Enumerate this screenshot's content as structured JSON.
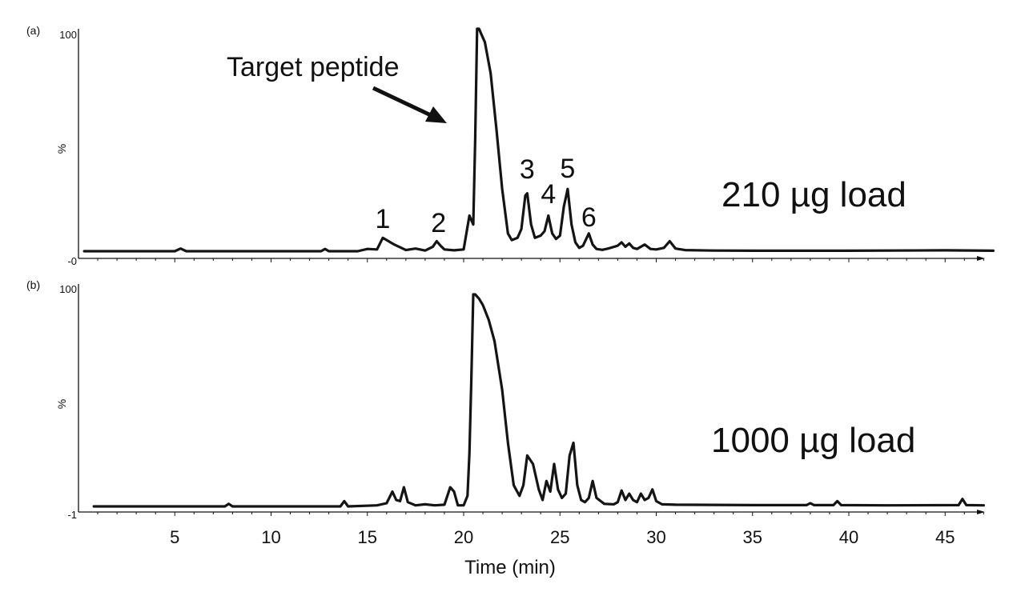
{
  "chart_data": {
    "type": "line",
    "x_axis": {
      "label": "Time (min)",
      "ticks": [
        5,
        10,
        15,
        20,
        25,
        30,
        35,
        40,
        45
      ],
      "range": [
        0,
        47.5
      ]
    },
    "panels": [
      {
        "panel_label": "(a)",
        "y_top_label": "100",
        "y_mid_label": "%",
        "y_bottom_label": "-0",
        "load_label": "210 µg load",
        "annotation": "Target peptide",
        "peak_labels": [
          {
            "text": "1",
            "x": 15.8
          },
          {
            "text": "2",
            "x": 18.7
          },
          {
            "text": "3",
            "x": 23.3
          },
          {
            "text": "4",
            "x": 24.4
          },
          {
            "text": "5",
            "x": 25.4
          },
          {
            "text": "6",
            "x": 26.5
          }
        ],
        "series": [
          {
            "x": [
              0.3,
              5.0,
              5.3,
              5.6,
              10.0,
              12.6,
              12.8,
              13.0,
              14.5,
              15.0,
              15.5,
              15.8,
              16.1,
              16.4,
              17.0,
              17.5,
              18.0,
              18.4,
              18.6,
              18.8,
              19.0,
              19.5,
              20.0,
              20.3,
              20.5,
              20.6,
              20.7,
              20.8,
              20.9,
              21.1,
              21.4,
              21.7,
              22.0,
              22.3,
              22.5,
              22.8,
              23.0,
              23.2,
              23.3,
              23.5,
              23.7,
              24.0,
              24.2,
              24.4,
              24.6,
              24.8,
              25.0,
              25.2,
              25.4,
              25.6,
              25.8,
              26.0,
              26.2,
              26.5,
              26.7,
              26.9,
              27.2,
              27.5,
              28.0,
              28.2,
              28.4,
              28.6,
              28.8,
              29.0,
              29.4,
              29.7,
              30.0,
              30.4,
              30.7,
              31.0,
              31.5,
              33.0,
              35.0,
              40.0,
              45.0,
              47.5
            ],
            "y": [
              0,
              0,
              1.2,
              0,
              0,
              0,
              1.0,
              0,
              0,
              1.0,
              0.8,
              6.0,
              4.5,
              3.0,
              0.5,
              1.2,
              0.3,
              2.0,
              4.5,
              2.5,
              0.8,
              0.4,
              0.8,
              16.0,
              12.0,
              50.0,
              100.0,
              100.0,
              98.0,
              94.0,
              80.0,
              55.0,
              28.0,
              8.0,
              5.0,
              6.0,
              10.0,
              25.0,
              26.0,
              12.0,
              6.0,
              7.0,
              9.0,
              16.0,
              8.0,
              5.5,
              7.0,
              20.0,
              28.0,
              12.0,
              4.0,
              1.5,
              2.5,
              8.0,
              3.0,
              1.0,
              0.6,
              1.2,
              2.5,
              4.0,
              2.0,
              3.5,
              1.5,
              1.0,
              3.0,
              1.0,
              0.8,
              1.5,
              4.5,
              1.2,
              0.5,
              0.3,
              0.2,
              0.2,
              0.4,
              0.2
            ]
          }
        ]
      },
      {
        "panel_label": "(b)",
        "y_top_label": "100",
        "y_mid_label": "%",
        "y_bottom_label": "-1",
        "load_label": "1000 µg load",
        "series": [
          {
            "x": [
              0.8,
              5.0,
              7.6,
              7.8,
              8.0,
              10.0,
              13.6,
              13.8,
              14.0,
              15.5,
              16.0,
              16.3,
              16.5,
              16.7,
              16.9,
              17.1,
              17.5,
              18.0,
              18.5,
              19.0,
              19.3,
              19.5,
              19.7,
              20.0,
              20.2,
              20.3,
              20.4,
              20.5,
              20.6,
              20.8,
              21.0,
              21.3,
              21.6,
              22.0,
              22.3,
              22.6,
              22.9,
              23.1,
              23.3,
              23.6,
              23.9,
              24.1,
              24.3,
              24.5,
              24.7,
              24.9,
              25.1,
              25.3,
              25.5,
              25.7,
              25.9,
              26.1,
              26.3,
              26.5,
              26.7,
              26.9,
              27.3,
              27.8,
              28.0,
              28.2,
              28.4,
              28.6,
              28.8,
              29.0,
              29.2,
              29.4,
              29.6,
              29.8,
              30.0,
              30.3,
              31.0,
              35.0,
              37.8,
              38.0,
              38.2,
              39.2,
              39.4,
              39.6,
              42.0,
              45.7,
              45.9,
              46.1,
              47.0
            ],
            "y": [
              0,
              0,
              0,
              1.2,
              0,
              0,
              0,
              2.5,
              0,
              0.5,
              1.5,
              7.0,
              3.0,
              2.5,
              9.0,
              2.0,
              0.5,
              1.0,
              0.5,
              0.8,
              9.0,
              7.0,
              0.5,
              0.5,
              5.0,
              25.0,
              60.0,
              100.0,
              100.0,
              98.0,
              95.0,
              88.0,
              78.0,
              55.0,
              30.0,
              10.0,
              5.0,
              10.0,
              24.0,
              20.0,
              8.0,
              3.0,
              12.0,
              7.0,
              20.0,
              8.0,
              4.0,
              6.0,
              24.0,
              30.0,
              10.0,
              3.0,
              2.0,
              4.0,
              12.0,
              4.0,
              1.2,
              1.0,
              2.0,
              7.5,
              3.0,
              6.0,
              3.0,
              2.0,
              6.0,
              3.0,
              4.0,
              8.0,
              2.5,
              1.0,
              0.8,
              0.6,
              0.6,
              1.5,
              0.6,
              0.6,
              2.5,
              0.6,
              0.5,
              0.6,
              3.5,
              0.6,
              0.5
            ]
          }
        ]
      }
    ]
  }
}
